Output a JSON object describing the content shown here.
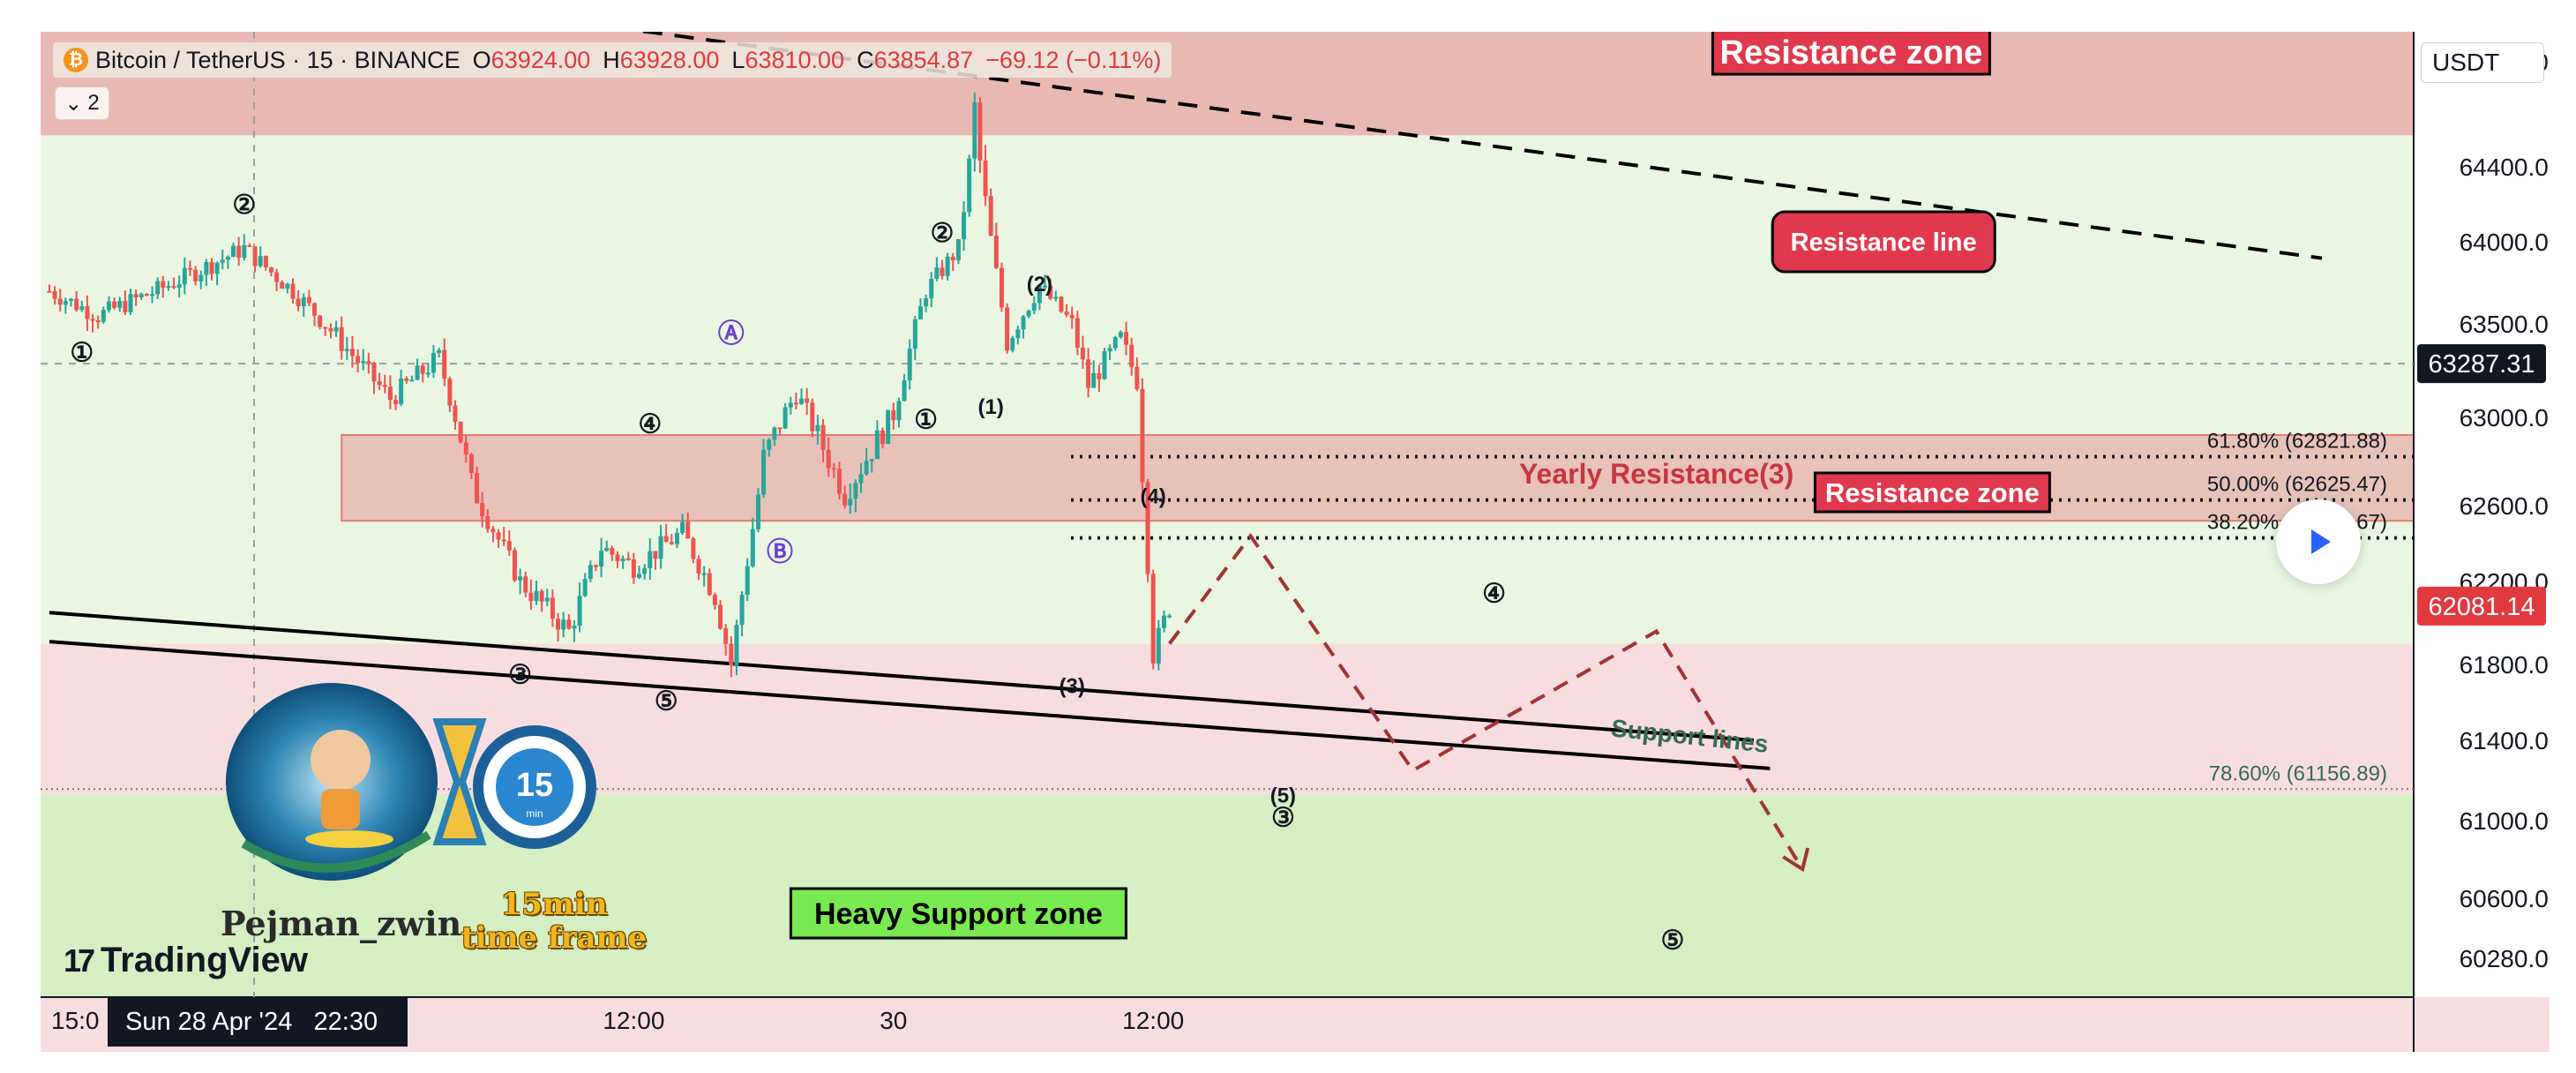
{
  "header": {
    "symbol_icon": "bitcoin-icon",
    "title": "Bitcoin / TetherUS · 15 · BINANCE",
    "ohlc": {
      "o_key": "O",
      "o": "63924.00",
      "h_key": "H",
      "h": "63928.00",
      "l_key": "L",
      "l": "63810.00",
      "c_key": "C",
      "c": "63854.87"
    },
    "change": "−69.12 (−0.11%)",
    "collapse_icon": "chevron-down-icon",
    "collapse_count": "2"
  },
  "toolbar": {
    "currency": "USDT",
    "play_icon": "play-icon"
  },
  "branding": {
    "logo": "TradingView",
    "author": "Pejman_zwin",
    "timeframe_note": [
      "15min",
      "time frame"
    ],
    "timer_label": "15",
    "timer_unit": "min"
  },
  "crosshair": {
    "date_label": "Sun 28 Apr '24   22:30"
  },
  "colors": {
    "background": "#ffffff",
    "up_candle": "#26a69a",
    "down_candle": "#ef5350",
    "resistance_band": "#e8b9b2",
    "green_zone": "#d5eec2",
    "light_green": "#eaf6e1",
    "pink_zone": "#f7dde0",
    "label_red": "#e0394e",
    "projection": "#a43334",
    "support_text": "#356b53"
  },
  "chart_data": {
    "type": "candlestick",
    "symbol": "Bitcoin / TetherUS",
    "interval": "15",
    "exchange": "BINANCE",
    "currency": "USDT",
    "y_ticks": [
      64800,
      64400,
      64000,
      63500,
      63000,
      62600,
      62200,
      61800,
      61400,
      61000,
      60600,
      60280
    ],
    "y_tick_labels": [
      "64800.00",
      "64400.00",
      "64000.00",
      "63500.00",
      "63000.00",
      "62600.00",
      "62200.00",
      "61800.00",
      "61400.00",
      "61000.00",
      "60600.00",
      "60280.00"
    ],
    "x_ticks": [
      {
        "t": 0,
        "label": "15:0"
      },
      {
        "t": 36,
        "label": "12:00"
      },
      {
        "t": 52,
        "label": "30"
      },
      {
        "t": 68,
        "label": "12:00"
      }
    ],
    "price_series": [
      {
        "t": 0,
        "p": 63700
      },
      {
        "t": 3,
        "p": 63550
      },
      {
        "t": 7,
        "p": 63720
      },
      {
        "t": 12,
        "p": 63960
      },
      {
        "t": 15,
        "p": 63700
      },
      {
        "t": 18,
        "p": 63400
      },
      {
        "t": 21,
        "p": 63100
      },
      {
        "t": 24,
        "p": 63320
      },
      {
        "t": 26,
        "p": 62700
      },
      {
        "t": 29,
        "p": 62200
      },
      {
        "t": 32,
        "p": 61960
      },
      {
        "t": 34,
        "p": 62380
      },
      {
        "t": 36,
        "p": 62280
      },
      {
        "t": 39,
        "p": 62460
      },
      {
        "t": 41,
        "p": 62130
      },
      {
        "t": 42,
        "p": 61800
      },
      {
        "t": 44,
        "p": 62820
      },
      {
        "t": 46,
        "p": 63130
      },
      {
        "t": 49,
        "p": 62650
      },
      {
        "t": 52,
        "p": 63020
      },
      {
        "t": 54,
        "p": 63700
      },
      {
        "t": 56,
        "p": 63960
      },
      {
        "t": 57,
        "p": 64620
      },
      {
        "t": 59,
        "p": 63400
      },
      {
        "t": 61,
        "p": 63730
      },
      {
        "t": 63,
        "p": 63500
      },
      {
        "t": 64,
        "p": 63170
      },
      {
        "t": 66,
        "p": 63420
      },
      {
        "t": 67,
        "p": 63200
      },
      {
        "t": 68,
        "p": 61850
      },
      {
        "t": 69,
        "p": 62081
      }
    ],
    "current_price": {
      "value": 62081.14,
      "label": "62081.14"
    },
    "crosshair_price": {
      "value": 63287.31,
      "label": "63287.31"
    },
    "fib_levels": [
      {
        "value": 62821.88,
        "label": "61.80% (62821.88)"
      },
      {
        "value": 62625.47,
        "label": "50.00% (62625.47)"
      },
      {
        "value": 62429.67,
        "label": "38.20% (62429.67)"
      },
      {
        "value": 61156.89,
        "label": "78.60% (61156.89)"
      }
    ],
    "zones": [
      {
        "name": "Resistance zone",
        "from": 64520,
        "to": 65100
      },
      {
        "name": "Resistance zone",
        "from": 62520,
        "to": 62920,
        "start_t": 18
      },
      {
        "name": "Heavy Support zone",
        "from": 59800,
        "to": 61130
      }
    ],
    "trendlines": [
      {
        "name": "Resistance line",
        "points": [
          {
            "t": 23,
            "p": 65030
          },
          {
            "t": 140,
            "p": 63900
          }
        ]
      },
      {
        "name": "Support lines",
        "points": [
          {
            "t": 0,
            "p": 62050
          },
          {
            "t": 105,
            "p": 61400
          }
        ]
      },
      {
        "name": "Support lines",
        "points": [
          {
            "t": 0,
            "p": 61910
          },
          {
            "t": 106,
            "p": 61260
          }
        ]
      }
    ],
    "projection_path": [
      {
        "t": 69,
        "p": 61900
      },
      {
        "t": 74,
        "p": 62440
      },
      {
        "t": 84,
        "p": 61250
      },
      {
        "t": 99,
        "p": 61960
      },
      {
        "t": 108,
        "p": 60750
      }
    ],
    "annotations": [
      {
        "text": "Resistance zone",
        "t": 111,
        "p": 64840
      },
      {
        "text": "Resistance line",
        "t": 113,
        "p": 64000
      },
      {
        "text": "Yearly Resistance(3)",
        "t": 99,
        "p": 62700
      },
      {
        "text": "Resistance zone",
        "t": 116,
        "p": 62660
      },
      {
        "text": "Heavy Support zone",
        "t": 56,
        "p": 60520
      },
      {
        "text": "Support lines",
        "t": 101,
        "p": 61380
      }
    ],
    "wave_labels": [
      {
        "text": "①",
        "t": 2,
        "p": 63300
      },
      {
        "text": "②",
        "t": 12,
        "p": 64150
      },
      {
        "text": "③",
        "t": 29,
        "p": 61700
      },
      {
        "text": "④",
        "t": 37,
        "p": 62930
      },
      {
        "text": "⑤",
        "t": 38,
        "p": 61560
      },
      {
        "text": "Ⓐ",
        "t": 42,
        "p": 63400
      },
      {
        "text": "Ⓑ",
        "t": 45,
        "p": 62310
      },
      {
        "text": "Ⓒ",
        "t": 52,
        "p": 65030
      },
      {
        "text": "②",
        "t": 55,
        "p": 64000
      },
      {
        "text": "①",
        "t": 54,
        "p": 62950
      },
      {
        "text": "(1)",
        "t": 58,
        "p": 63020
      },
      {
        "text": "(2)",
        "t": 61,
        "p": 63700
      },
      {
        "text": "(3)",
        "t": 63,
        "p": 61650
      },
      {
        "text": "(4)",
        "t": 68,
        "p": 62610
      },
      {
        "text": "④",
        "t": 89,
        "p": 62100
      },
      {
        "text": "(5)",
        "t": 76,
        "p": 61090
      },
      {
        "text": "③",
        "t": 76,
        "p": 60970
      },
      {
        "text": "⑤",
        "t": 100,
        "p": 60330
      }
    ]
  }
}
